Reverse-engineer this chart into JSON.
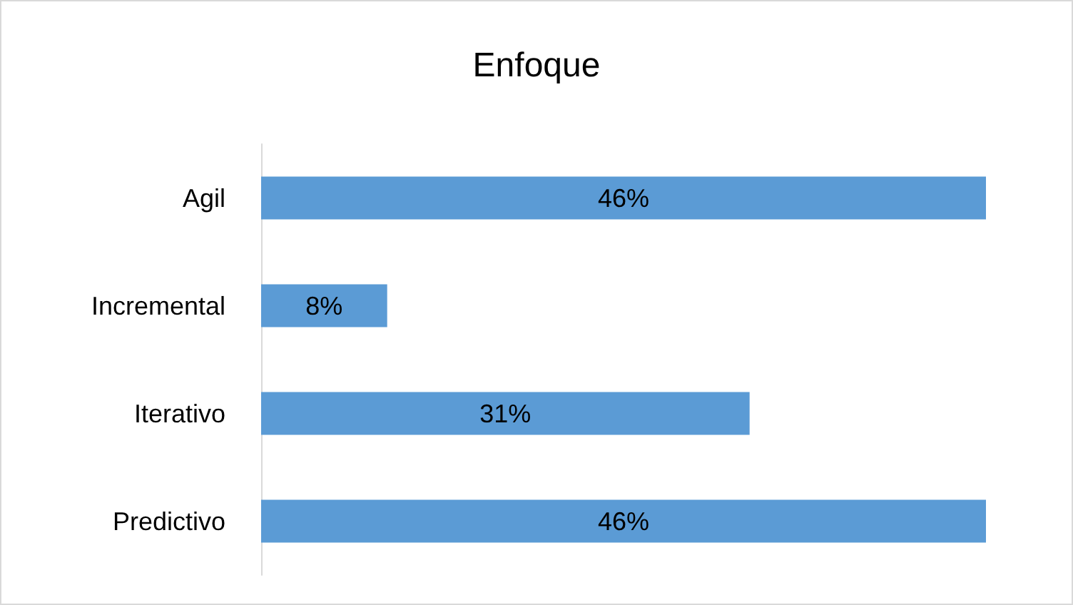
{
  "chart_data": {
    "type": "bar",
    "orientation": "horizontal",
    "title": "Enfoque",
    "categories": [
      "Agil",
      "Incremental",
      "Iterativo",
      "Predictivo"
    ],
    "values": [
      46,
      8,
      31,
      46
    ],
    "value_labels": [
      "46%",
      "8%",
      "31%",
      "46%"
    ],
    "color": "#5b9bd5"
  }
}
